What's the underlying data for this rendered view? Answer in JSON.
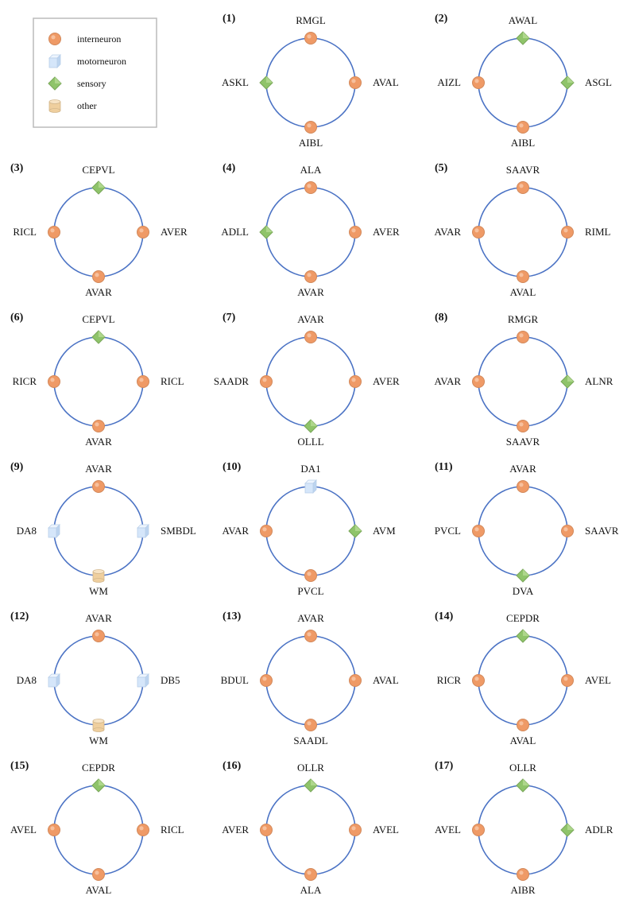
{
  "colors": {
    "ring": "#4a72c4",
    "interneuron": "#ef9a66",
    "motorneuron": "#d5e6fa",
    "sensory": "#8fc46a",
    "other": "#efcf9e",
    "legend_border": "#bbbbbb"
  },
  "legend": [
    {
      "type": "interneuron",
      "label": "interneuron"
    },
    {
      "type": "motorneuron",
      "label": "motorneuron"
    },
    {
      "type": "sensory",
      "label": "sensory"
    },
    {
      "type": "other",
      "label": "other"
    }
  ],
  "motifs": [
    {
      "label": "(1)",
      "nodes": [
        {
          "name": "RMGL",
          "type": "interneuron"
        },
        {
          "name": "AVAL",
          "type": "interneuron"
        },
        {
          "name": "AIBL",
          "type": "interneuron"
        },
        {
          "name": "ASKL",
          "type": "sensory"
        }
      ]
    },
    {
      "label": "(2)",
      "nodes": [
        {
          "name": "AWAL",
          "type": "sensory"
        },
        {
          "name": "ASGL",
          "type": "sensory"
        },
        {
          "name": "AIBL",
          "type": "interneuron"
        },
        {
          "name": "AIZL",
          "type": "interneuron"
        }
      ]
    },
    {
      "label": "(3)",
      "nodes": [
        {
          "name": "CEPVL",
          "type": "sensory"
        },
        {
          "name": "AVER",
          "type": "interneuron"
        },
        {
          "name": "AVAR",
          "type": "interneuron"
        },
        {
          "name": "RICL",
          "type": "interneuron"
        }
      ]
    },
    {
      "label": "(4)",
      "nodes": [
        {
          "name": "ALA",
          "type": "interneuron"
        },
        {
          "name": "AVER",
          "type": "interneuron"
        },
        {
          "name": "AVAR",
          "type": "interneuron"
        },
        {
          "name": "ADLL",
          "type": "sensory"
        }
      ]
    },
    {
      "label": "(5)",
      "nodes": [
        {
          "name": "SAAVR",
          "type": "interneuron"
        },
        {
          "name": "RIML",
          "type": "interneuron"
        },
        {
          "name": "AVAL",
          "type": "interneuron"
        },
        {
          "name": "AVAR",
          "type": "interneuron"
        }
      ]
    },
    {
      "label": "(6)",
      "nodes": [
        {
          "name": "CEPVL",
          "type": "sensory"
        },
        {
          "name": "RICL",
          "type": "interneuron"
        },
        {
          "name": "AVAR",
          "type": "interneuron"
        },
        {
          "name": "RICR",
          "type": "interneuron"
        }
      ]
    },
    {
      "label": "(7)",
      "nodes": [
        {
          "name": "AVAR",
          "type": "interneuron"
        },
        {
          "name": "AVER",
          "type": "interneuron"
        },
        {
          "name": "OLLL",
          "type": "sensory"
        },
        {
          "name": "SAADR",
          "type": "interneuron"
        }
      ]
    },
    {
      "label": "(8)",
      "nodes": [
        {
          "name": "RMGR",
          "type": "interneuron"
        },
        {
          "name": "ALNR",
          "type": "sensory"
        },
        {
          "name": "SAAVR",
          "type": "interneuron"
        },
        {
          "name": "AVAR",
          "type": "interneuron"
        }
      ]
    },
    {
      "label": "(9)",
      "nodes": [
        {
          "name": "AVAR",
          "type": "interneuron"
        },
        {
          "name": "SMBDL",
          "type": "motorneuron"
        },
        {
          "name": "WM",
          "type": "other"
        },
        {
          "name": "DA8",
          "type": "motorneuron"
        }
      ]
    },
    {
      "label": "(10)",
      "nodes": [
        {
          "name": "DA1",
          "type": "motorneuron"
        },
        {
          "name": "AVM",
          "type": "sensory"
        },
        {
          "name": "PVCL",
          "type": "interneuron"
        },
        {
          "name": "AVAR",
          "type": "interneuron"
        }
      ]
    },
    {
      "label": "(11)",
      "nodes": [
        {
          "name": "AVAR",
          "type": "interneuron"
        },
        {
          "name": "SAAVR",
          "type": "interneuron"
        },
        {
          "name": "DVA",
          "type": "sensory"
        },
        {
          "name": "PVCL",
          "type": "interneuron"
        }
      ]
    },
    {
      "label": "(12)",
      "nodes": [
        {
          "name": "AVAR",
          "type": "interneuron"
        },
        {
          "name": "DB5",
          "type": "motorneuron"
        },
        {
          "name": "WM",
          "type": "other"
        },
        {
          "name": "DA8",
          "type": "motorneuron"
        }
      ]
    },
    {
      "label": "(13)",
      "nodes": [
        {
          "name": "AVAR",
          "type": "interneuron"
        },
        {
          "name": "AVAL",
          "type": "interneuron"
        },
        {
          "name": "SAADL",
          "type": "interneuron"
        },
        {
          "name": "BDUL",
          "type": "interneuron"
        }
      ]
    },
    {
      "label": "(14)",
      "nodes": [
        {
          "name": "CEPDR",
          "type": "sensory"
        },
        {
          "name": "AVEL",
          "type": "interneuron"
        },
        {
          "name": "AVAL",
          "type": "interneuron"
        },
        {
          "name": "RICR",
          "type": "interneuron"
        }
      ]
    },
    {
      "label": "(15)",
      "nodes": [
        {
          "name": "CEPDR",
          "type": "sensory"
        },
        {
          "name": "RICL",
          "type": "interneuron"
        },
        {
          "name": "AVAL",
          "type": "interneuron"
        },
        {
          "name": "AVEL",
          "type": "interneuron"
        }
      ]
    },
    {
      "label": "(16)",
      "nodes": [
        {
          "name": "OLLR",
          "type": "sensory"
        },
        {
          "name": "AVEL",
          "type": "interneuron"
        },
        {
          "name": "ALA",
          "type": "interneuron"
        },
        {
          "name": "AVER",
          "type": "interneuron"
        }
      ]
    },
    {
      "label": "(17)",
      "nodes": [
        {
          "name": "OLLR",
          "type": "sensory"
        },
        {
          "name": "ADLR",
          "type": "sensory"
        },
        {
          "name": "AIBR",
          "type": "interneuron"
        },
        {
          "name": "AVEL",
          "type": "interneuron"
        }
      ]
    }
  ]
}
